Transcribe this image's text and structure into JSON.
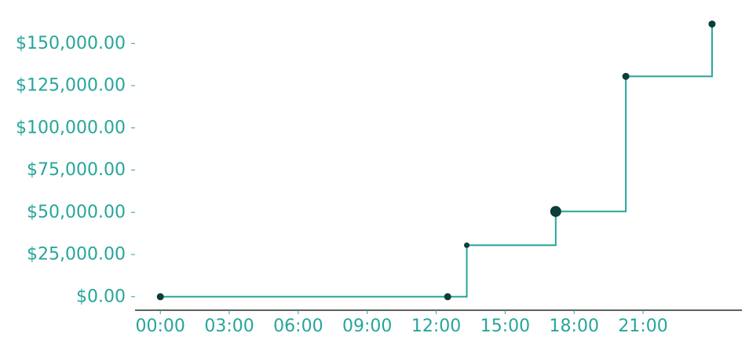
{
  "chart_data": {
    "type": "line",
    "line_shape": "step",
    "title": "",
    "xlabel": "",
    "ylabel": "",
    "x_ticks": [
      "00:00",
      "03:00",
      "06:00",
      "09:00",
      "12:00",
      "15:00",
      "18:00",
      "21:00"
    ],
    "x_tick_hours": [
      0,
      3,
      6,
      9,
      12,
      15,
      18,
      21
    ],
    "y_ticks": [
      "$0.00",
      "$25,000.00",
      "$50,000.00",
      "$75,000.00",
      "$100,000.00",
      "$125,000.00",
      "$150,000.00"
    ],
    "y_tick_values": [
      0,
      25000,
      50000,
      75000,
      100000,
      125000,
      150000
    ],
    "xlim_hours": [
      -1.1,
      25.3
    ],
    "ylim": [
      -8000,
      172000
    ],
    "grid": false,
    "points": [
      {
        "time": "00:00",
        "hour": 0.0,
        "value": 0,
        "marker": "normal"
      },
      {
        "time": "12:30",
        "hour": 12.5,
        "value": 0,
        "marker": "normal"
      },
      {
        "time": "13:20",
        "hour": 13.33,
        "value": 30500,
        "marker": "small"
      },
      {
        "time": "17:10",
        "hour": 17.2,
        "value": 50500,
        "marker": "large"
      },
      {
        "time": "20:15",
        "hour": 20.25,
        "value": 130500,
        "marker": "normal"
      },
      {
        "time": "24:00",
        "hour": 24.0,
        "value": 161500,
        "marker": "normal"
      }
    ],
    "colors": {
      "line": "#26a69a",
      "marker": "#0b3d3a",
      "tick_text": "#26a69a",
      "axis": "#000000"
    }
  }
}
